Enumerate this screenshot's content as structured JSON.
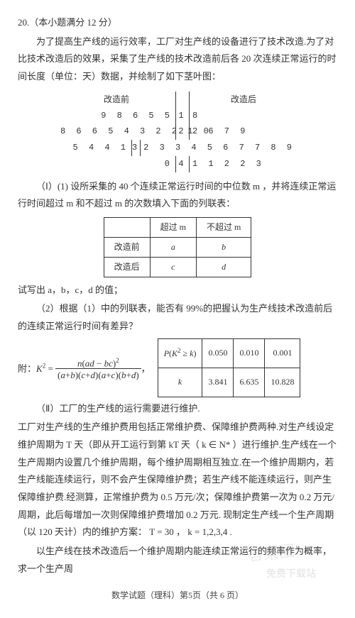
{
  "header": {
    "qnum": "20.（本小题满分 12 分）",
    "p1": "为了提高生产线的运行效率，工厂对生产线的设备进行了技术改造.为了对比技术改造后的效果，采集了生产线的技术改造前后各 20 次连续正常运行的时间长度（单位：天）数据，并绘制了如下茎叶图：",
    "stem_left_header": "改造前",
    "stem_right_header": "改造后"
  },
  "stem": {
    "rows": [
      {
        "left": "9 8 6 5 5",
        "mid": "1",
        "right": "8"
      },
      {
        "left": "8 6 6 5 4 3 2 2 1 0",
        "mid": "2",
        "right": "2 6 7 9"
      },
      {
        "left": "5 4 4 1",
        "mid": "3",
        "right": "2 3 3 4 5 6 7 7 8 9"
      },
      {
        "left": "0",
        "mid": "4",
        "right": "1 1 2 2 3"
      }
    ]
  },
  "part1": {
    "p": "（Ⅰ）(1) 设所采集的 40 个连续正常运行时间的中位数 m ，并将连续正常运行时间超过 m 和不超过 m 的次数填入下面的列联表：",
    "table": {
      "h1": "超过 m",
      "h2": "不超过 m",
      "r1": "改造前",
      "a": "a",
      "b": "b",
      "r2": "改造后",
      "c": "c",
      "d": "d"
    },
    "after": "试写出 a，b，c，d 的值；"
  },
  "part2": {
    "p": "（2）根据（1）中的列联表，能否有 99%的把握认为生产线技术改造前后的连续正常运行时间有差异？",
    "formula_prefix": "附：",
    "ktable": {
      "h1": "P(K² ≥ k)",
      "p1": "0.050",
      "p2": "0.010",
      "p3": "0.001",
      "h2": "k",
      "k1": "3.841",
      "k2": "6.635",
      "k3": "10.828"
    }
  },
  "part3": {
    "p1": "（Ⅱ）工厂的生产线的运行需要进行维护.",
    "p2": "工厂对生产线的生产维护费用包括正常维护费、保障维护费两种.对生产线设定维护周期为 T 天（即从开工运行到第 kT 天（ k ∈ N* ）进行维护.生产线在一个生产周期内设置几个维护周期，每个维护周期相互独立.在一个维护周期内，若生产线能连续运行，则不会产生保障维护费；若生产线不能连续运行，则产生保障维护费.经测算，正常维护费为 0.5 万元/次；保障维护费第一次为 0.2 万元/周期，此后每增加一次则保障维护费增加 0.2 万元. 现制定生产线一个生产周期（以 120 天计）内的维护方案：  T = 30 ，  k = 1,2,3,4 .",
    "p3": "以生产线在技术改造后一个维护周期内能连续正常运行的频率作为概率，求一个生产周"
  },
  "footer": "数学试题（理科）第5页（共 6 页）",
  "watermarks": {
    "w1": "答案圈",
    "w2": "免费下载站"
  }
}
